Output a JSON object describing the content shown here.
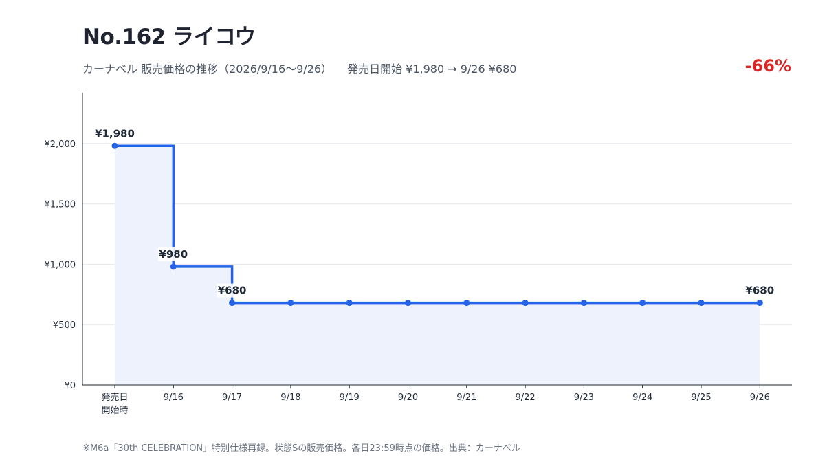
{
  "header": {
    "title": "No.162 ライコウ",
    "subtitle": "カーナベル 販売価格の推移（2026/9/16〜9/26）",
    "summary": "発売日開始 ¥1,980 → 9/26 ¥680",
    "change": "-66%"
  },
  "footnote": "※M6a「30th CELEBRATION」特別仕様再録。状態Sの販売価格。各日23:59時点の価格。出典：カーナベル",
  "colors": {
    "line": "#2563eb",
    "fill": "#eef2fc",
    "change": "#dc2626",
    "grid": "#e5e7eb"
  },
  "chart_data": {
    "type": "line",
    "step": "after",
    "categories": [
      "発売日\n開始時",
      "9/16",
      "9/17",
      "9/18",
      "9/19",
      "9/20",
      "9/21",
      "9/22",
      "9/23",
      "9/24",
      "9/25",
      "9/26"
    ],
    "values": [
      1980,
      980,
      680,
      680,
      680,
      680,
      680,
      680,
      680,
      680,
      680,
      680
    ],
    "value_labels": [
      "¥1,980",
      "¥980",
      "¥680",
      "",
      "",
      "",
      "",
      "",
      "",
      "",
      "",
      "¥680"
    ],
    "ylim": [
      0,
      2420
    ],
    "yticks": [
      0,
      500,
      1000,
      1500,
      2000
    ],
    "ytick_labels": [
      "¥0",
      "¥500",
      "¥1,000",
      "¥1,500",
      "¥2,000"
    ],
    "grid": "horizontal",
    "area_fill": true
  }
}
